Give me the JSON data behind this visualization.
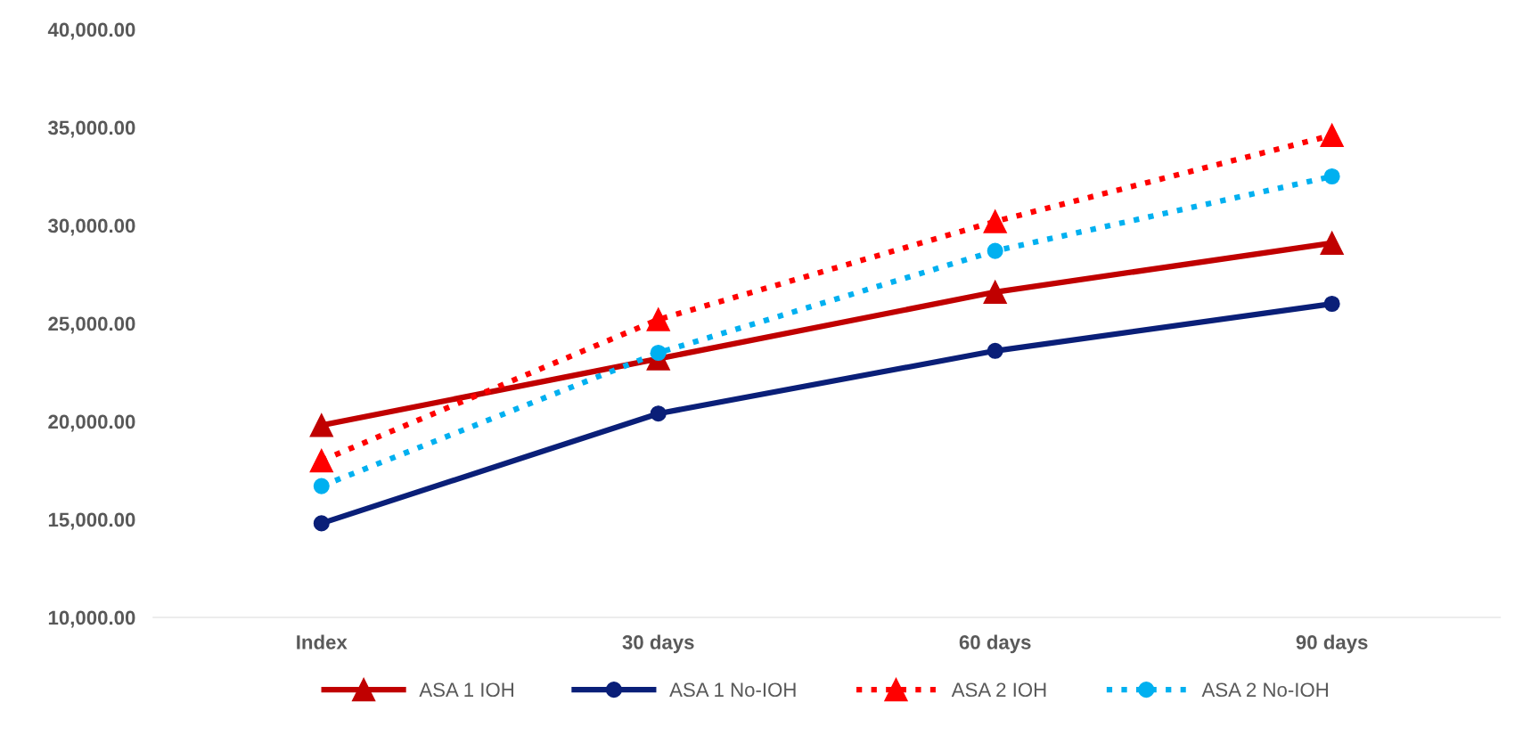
{
  "chart_data": {
    "type": "line",
    "categories": [
      "Index",
      "30 days",
      "60 days",
      "90 days"
    ],
    "series": [
      {
        "name": "ASA 1 IOH",
        "color": "#c00000",
        "marker": "triangle",
        "line_style": "solid",
        "values": [
          19800,
          23200,
          26600,
          29100
        ]
      },
      {
        "name": "ASA 1 No-IOH",
        "color": "#0a1f78",
        "marker": "circle",
        "line_style": "solid",
        "values": [
          14800,
          20400,
          23600,
          26000
        ]
      },
      {
        "name": "ASA 2 IOH",
        "color": "#ff0000",
        "marker": "triangle",
        "line_style": "dotted",
        "values": [
          18000,
          25200,
          30200,
          34600
        ]
      },
      {
        "name": "ASA 2 No-IOH",
        "color": "#00b0f0",
        "marker": "circle",
        "line_style": "dotted",
        "values": [
          16700,
          23500,
          28700,
          32500
        ]
      }
    ],
    "ylim": [
      10000,
      40000
    ],
    "yticks": [
      {
        "value": 10000,
        "label": "10,000.00"
      },
      {
        "value": 15000,
        "label": "15,000.00"
      },
      {
        "value": 20000,
        "label": "20,000.00"
      },
      {
        "value": 25000,
        "label": "25,000.00"
      },
      {
        "value": 30000,
        "label": "30,000.00"
      },
      {
        "value": 35000,
        "label": "35,000.00"
      },
      {
        "value": 40000,
        "label": "40,000.00"
      }
    ],
    "grid": false,
    "legend": "bottom"
  }
}
